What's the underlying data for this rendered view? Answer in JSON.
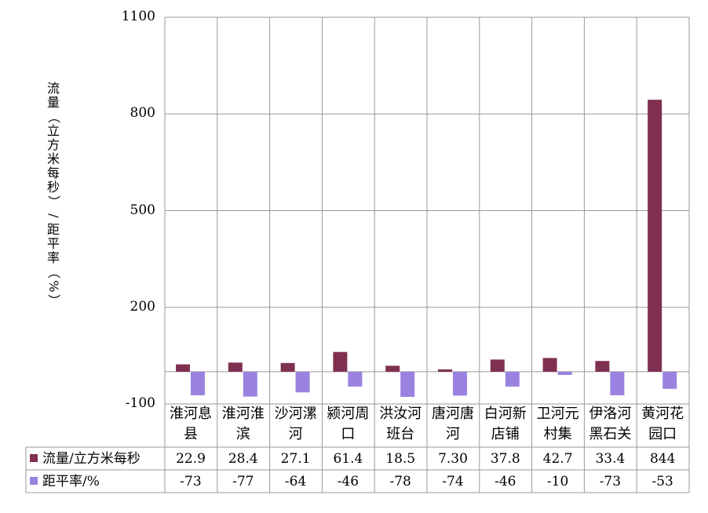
{
  "chart_data": {
    "type": "bar",
    "ylabel": "流量（立方米每秒）/距平率（%）",
    "ylim": [
      -100,
      1100
    ],
    "yticks": [
      "1100",
      "800",
      "500",
      "200",
      "-100"
    ],
    "categories": [
      "淮河息县",
      "淮河淮滨",
      "沙河漯河",
      "颍河周口",
      "洪汝河班台",
      "唐河唐河",
      "白河新店铺",
      "卫河元村集",
      "伊洛河黑石关",
      "黄河花园口"
    ],
    "category_lines": [
      [
        "淮河息",
        "县"
      ],
      [
        "淮河淮",
        "滨"
      ],
      [
        "沙河漯",
        "河"
      ],
      [
        "颍河周",
        "口"
      ],
      [
        "洪汝河",
        "班台"
      ],
      [
        "唐河唐",
        "河"
      ],
      [
        "白河新",
        "店铺"
      ],
      [
        "卫河元",
        "村集"
      ],
      [
        "伊洛河",
        "黑石关"
      ],
      [
        "黄河花",
        "园口"
      ]
    ],
    "series": [
      {
        "name": "流量/立方米每秒",
        "color": "#7f3050",
        "values": [
          22.9,
          28.4,
          27.1,
          61.4,
          18.5,
          7.3,
          37.8,
          42.7,
          33.4,
          844
        ],
        "labels": [
          "22.9",
          "28.4",
          "27.1",
          "61.4",
          "18.5",
          "7.30",
          "37.8",
          "42.7",
          "33.4",
          "844"
        ]
      },
      {
        "name": "距平率/%",
        "color": "#9a82e0",
        "values": [
          -73,
          -77,
          -64,
          -46,
          -78,
          -74,
          -46,
          -10,
          -73,
          -53
        ],
        "labels": [
          "-73",
          "-77",
          "-64",
          "-46",
          "-78",
          "-74",
          "-46",
          "-10",
          "-73",
          "-53"
        ]
      }
    ],
    "grid": true,
    "legend": "table"
  }
}
